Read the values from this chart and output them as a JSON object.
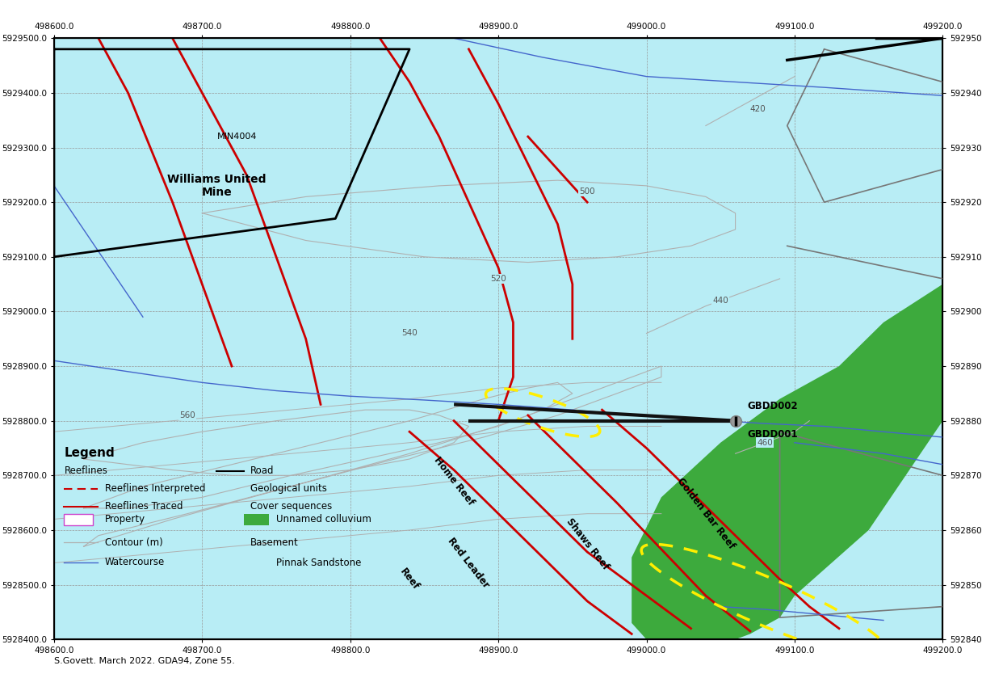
{
  "bg_color": "#b8edf5",
  "green_color": "#3daa3d",
  "xmin": 498600,
  "xmax": 499200,
  "ymin": 5928400,
  "ymax": 5929500,
  "xticks": [
    498600,
    498700,
    498800,
    498900,
    499000,
    499100,
    499200
  ],
  "yticks": [
    5928400,
    5928500,
    5928600,
    5928700,
    5928800,
    5928900,
    5929000,
    5929100,
    5929200,
    5929300,
    5929400,
    5929500
  ],
  "grid_color": "#999999",
  "contour_color": "#b0b0b0",
  "reef_red": "#cc0000",
  "water_blue": "#4466cc",
  "prop_magenta": "#cc44cc",
  "road_black": "#111111",
  "gray_survey": "#777777",
  "drill_black": "#111111",
  "hole_gray": "#999999",
  "yellow_color": "#ffee00",
  "footer_text": "S.Govett. March 2022. GDA94, Zone 55."
}
